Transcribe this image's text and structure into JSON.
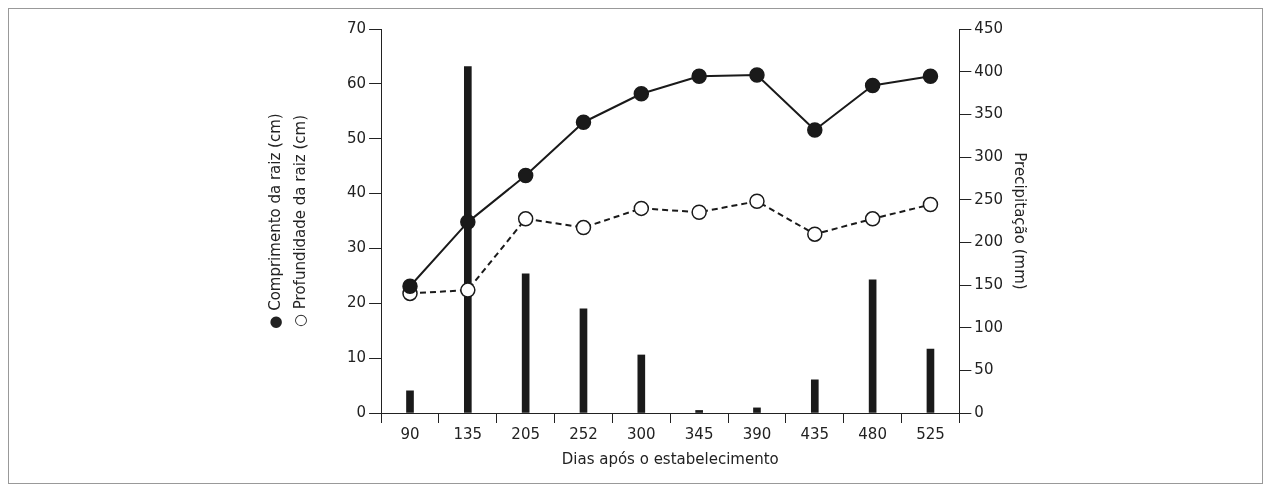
{
  "chart_data": {
    "type": "line",
    "categories": [
      "90",
      "135",
      "205",
      "252",
      "300",
      "345",
      "390",
      "435",
      "480",
      "525"
    ],
    "xlabel": "Dias após o estabelecimento",
    "y2label": "Precipitação (mm)",
    "ylim": [
      0,
      70
    ],
    "yticks": [
      0,
      10,
      20,
      30,
      40,
      50,
      60,
      70
    ],
    "y2lim": [
      0,
      450
    ],
    "y2ticks": [
      0,
      50,
      100,
      150,
      200,
      250,
      300,
      350,
      400,
      450
    ],
    "ylabel": "● Comprimento da raiz (cm)\n○ Profundidade da raiz (cm)",
    "grid": false,
    "series": [
      {
        "type": "bar",
        "axis": "y2",
        "color": "#1a1a1a",
        "values": [
          26,
          406,
          163,
          122,
          68,
          3,
          6,
          39,
          156,
          75
        ]
      },
      {
        "color": "#1a1a1a",
        "marker": "circle",
        "line_style": "solid",
        "values": [
          23.1,
          34.8,
          43.3,
          53.0,
          58.2,
          61.4,
          61.6,
          51.6,
          59.7,
          61.4
        ]
      },
      {
        "color": "#1a1a1a",
        "marker": "circle",
        "line_style": "dashed",
        "values": [
          21.8,
          22.4,
          35.4,
          33.8,
          37.3,
          36.6,
          38.6,
          32.6,
          35.4,
          38.0
        ]
      }
    ]
  }
}
